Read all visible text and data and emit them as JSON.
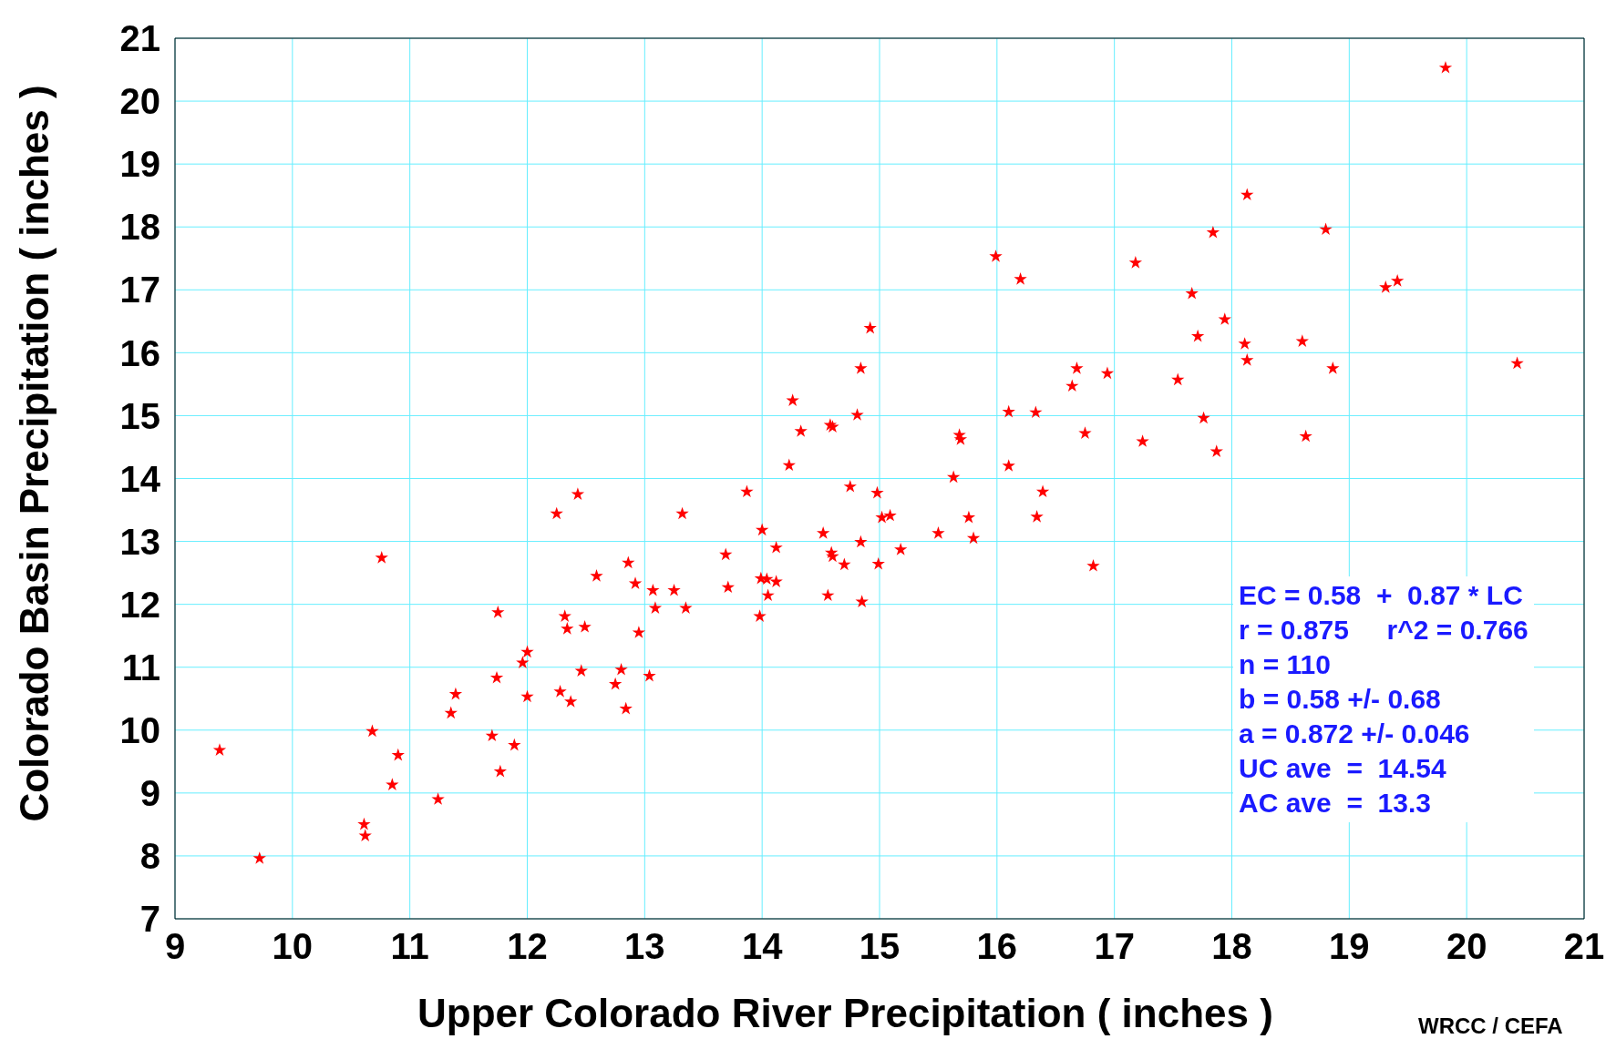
{
  "chart_data": {
    "type": "scatter",
    "xlabel": "Upper Colorado River Precipitation ( inches )",
    "ylabel": "Colorado Basin Precipitation ( inches )",
    "xlim": [
      9,
      21
    ],
    "xticks": [
      9,
      10,
      11,
      12,
      13,
      14,
      15,
      16,
      17,
      18,
      19,
      20,
      21
    ],
    "ylim": [
      7,
      21
    ],
    "yticks": [
      7,
      8,
      9,
      10,
      11,
      12,
      13,
      14,
      15,
      16,
      17,
      18,
      19,
      20,
      21
    ],
    "grid": true,
    "marker": "star",
    "series": [
      {
        "color": "#ff0000",
        "x": [
          9.38,
          9.72,
          10.76,
          10.68,
          10.61,
          10.62,
          10.85,
          10.9,
          11.24,
          11.35,
          11.39,
          11.7,
          11.74,
          11.75,
          11.77,
          11.89,
          11.96,
          12,
          12,
          12.25,
          12.28,
          12.32,
          12.34,
          12.37,
          12.43,
          12.46,
          12.49,
          12.59,
          12.75,
          12.8,
          12.84,
          12.86,
          12.92,
          12.95,
          13.04,
          13.07,
          13.09,
          13.25,
          13.32,
          13.35,
          13.69,
          13.71,
          13.87,
          13.98,
          14,
          13.99,
          14.04,
          14.05,
          14.12,
          14.12,
          14.23,
          14.26,
          14.33,
          14.52,
          14.56,
          14.58,
          14.59,
          14.6,
          14.6,
          14.7,
          14.75,
          14.81,
          14.84,
          14.84,
          14.85,
          14.92,
          14.98,
          14.99,
          15.02,
          15.09,
          15.18,
          15.5,
          15.63,
          15.68,
          15.69,
          15.76,
          15.8,
          15.99,
          16.1,
          16.1,
          16.2,
          16.33,
          16.34,
          16.39,
          16.64,
          16.68,
          16.75,
          16.82,
          16.94,
          17.18,
          17.24,
          17.54,
          17.66,
          17.71,
          17.76,
          17.84,
          17.87,
          17.94,
          18.11,
          18.13,
          18.13,
          18.6,
          18.63,
          18.8,
          18.86,
          19.31,
          19.41,
          19.82,
          20.43
        ],
        "values": [
          9.68,
          7.96,
          12.74,
          9.98,
          8.5,
          8.32,
          9.13,
          9.6,
          8.9,
          10.27,
          10.57,
          9.91,
          10.83,
          11.87,
          9.34,
          9.76,
          11.07,
          11.24,
          10.53,
          13.44,
          10.61,
          11.81,
          11.61,
          10.45,
          13.75,
          10.94,
          11.64,
          12.45,
          10.73,
          10.96,
          10.34,
          12.66,
          12.33,
          11.55,
          10.86,
          12.22,
          11.94,
          12.22,
          13.44,
          11.94,
          12.79,
          12.27,
          13.79,
          11.81,
          13.18,
          12.41,
          12.4,
          12.14,
          12.9,
          12.36,
          14.21,
          15.24,
          14.75,
          13.13,
          12.14,
          14.85,
          12.82,
          14.82,
          12.76,
          12.63,
          13.87,
          15.01,
          15.75,
          12.99,
          12.04,
          16.39,
          13.77,
          12.64,
          13.38,
          13.41,
          12.87,
          13.13,
          14.02,
          14.69,
          14.62,
          13.38,
          13.05,
          17.53,
          14.2,
          15.06,
          17.17,
          15.05,
          13.39,
          13.79,
          15.47,
          15.75,
          14.72,
          12.61,
          15.67,
          17.43,
          14.59,
          15.57,
          16.94,
          16.26,
          14.96,
          17.91,
          14.43,
          16.53,
          16.14,
          15.88,
          18.51,
          16.18,
          14.67,
          17.96,
          15.75,
          17.04,
          17.14,
          20.53,
          15.83
        ]
      }
    ],
    "annotations": [
      "EC = 0.58  +  0.87 * LC",
      "r = 0.875     r^2 = 0.766",
      "n = 110",
      "b = 0.58 +/- 0.68",
      "a = 0.872 +/- 0.046",
      "UC ave  =  14.54",
      "AC ave  =  13.3",
      "WRCC / CEFA"
    ]
  }
}
